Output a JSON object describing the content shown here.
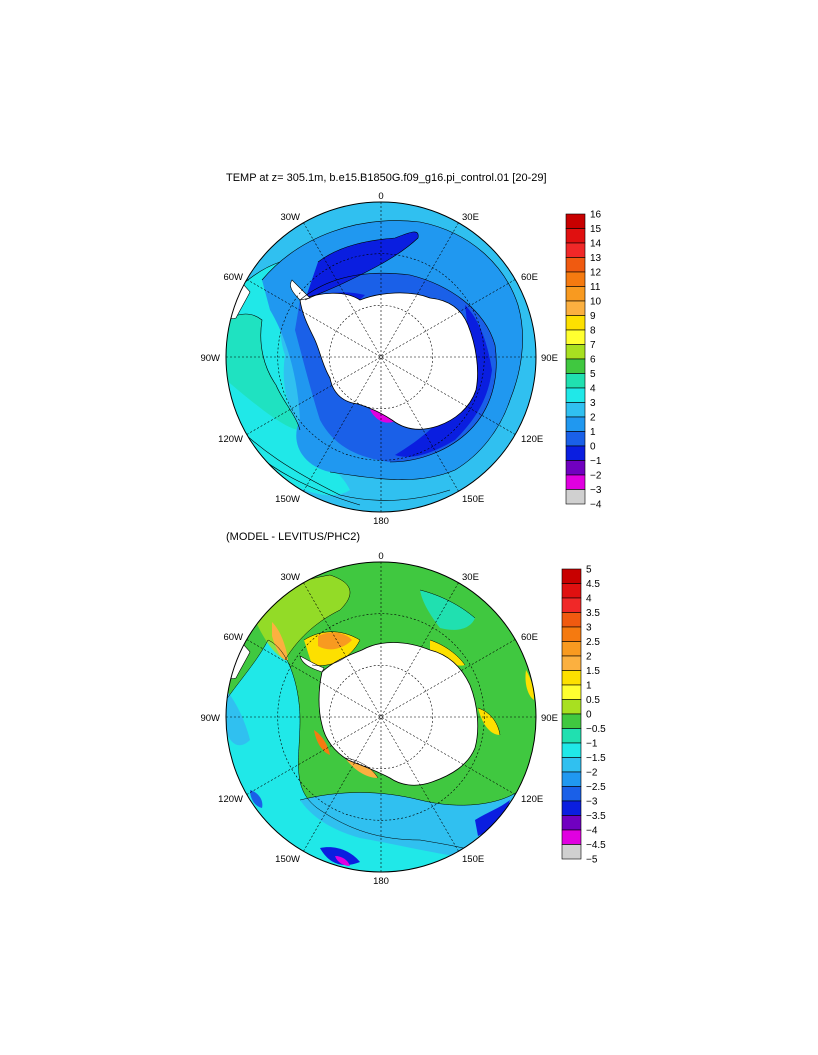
{
  "panels": [
    {
      "id": "temp",
      "title": "TEMP at z= 305.1m, b.e15.B1850G.f09_g16.pi_control.01 [20-29]",
      "lon_labels": [
        "0",
        "30E",
        "60E",
        "90E",
        "120E",
        "150E",
        "180",
        "150W",
        "120W",
        "90W",
        "60W",
        "30W"
      ],
      "colorbar": {
        "levels": [
          "16",
          "15",
          "14",
          "13",
          "12",
          "11",
          "10",
          "9",
          "8",
          "7",
          "6",
          "5",
          "4",
          "3",
          "2",
          "1",
          "0",
          "−1",
          "−2",
          "−3",
          "−4"
        ],
        "colors": [
          "#c80000",
          "#e01010",
          "#f02828",
          "#f05a10",
          "#f57a10",
          "#f89a20",
          "#fbb040",
          "#fde000",
          "#ffff30",
          "#a8e020",
          "#40c840",
          "#20e0b0",
          "#20e8e8",
          "#30c0f0",
          "#2098f0",
          "#1a60e8",
          "#0a1ee0",
          "#7000c0",
          "#e000e0",
          "#d0d0d0",
          "#707070"
        ]
      }
    },
    {
      "id": "diff",
      "title": "(MODEL - LEVITUS/PHC2)",
      "lon_labels": [
        "0",
        "30E",
        "60E",
        "90E",
        "120E",
        "150E",
        "180",
        "150W",
        "120W",
        "90W",
        "60W",
        "30W"
      ],
      "colorbar": {
        "levels": [
          "5",
          "4.5",
          "4",
          "3.5",
          "3",
          "2.5",
          "2",
          "1.5",
          "1",
          "0.5",
          "0",
          "−0.5",
          "−1",
          "−1.5",
          "−2",
          "−2.5",
          "−3",
          "−3.5",
          "−4",
          "−4.5",
          "−5"
        ],
        "colors": [
          "#c80000",
          "#e01010",
          "#f02828",
          "#f05a10",
          "#f57a10",
          "#f89a20",
          "#fbb040",
          "#fde000",
          "#ffff30",
          "#a8e020",
          "#40c840",
          "#20e0b0",
          "#20e8e8",
          "#30c0f0",
          "#2098f0",
          "#1a60e8",
          "#0a1ee0",
          "#7000c0",
          "#e000e0",
          "#d0d0d0",
          "#707070"
        ]
      }
    }
  ]
}
